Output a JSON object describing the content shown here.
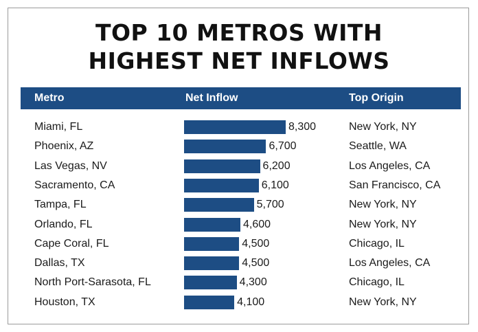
{
  "title_line1": "TOP 10 METROS WITH",
  "title_line2": "HIGHEST NET INFLOWS",
  "headers": {
    "metro": "Metro",
    "inflow": "Net Inflow",
    "origin": "Top Origin"
  },
  "colors": {
    "accent": "#1d4d84",
    "text": "#1a1a1a",
    "border": "#9a9a9a"
  },
  "chart_data": {
    "type": "bar",
    "orientation": "horizontal",
    "title": "TOP 10 METROS WITH HIGHEST NET INFLOWS",
    "categories": [
      "Miami, FL",
      "Phoenix, AZ",
      "Las Vegas, NV",
      "Sacramento, CA",
      "Tampa, FL",
      "Orlando, FL",
      "Cape Coral, FL",
      "Dallas, TX",
      "North Port-Sarasota, FL",
      "Houston, TX"
    ],
    "values": [
      8300,
      6700,
      6200,
      6100,
      5700,
      4600,
      4500,
      4500,
      4300,
      4100
    ],
    "value_labels": [
      "8,300",
      "6,700",
      "6,200",
      "6,100",
      "5,700",
      "4,600",
      "4,500",
      "4,500",
      "4,300",
      "4,100"
    ],
    "top_origins": [
      "New York, NY",
      "Seattle, WA",
      "Los Angeles, CA",
      "San Francisco, CA",
      "New York, NY",
      "New York, NY",
      "Chicago, IL",
      "Los Angeles, CA",
      "Chicago, IL",
      "New York, NY"
    ],
    "grid": false,
    "legend": "none"
  }
}
